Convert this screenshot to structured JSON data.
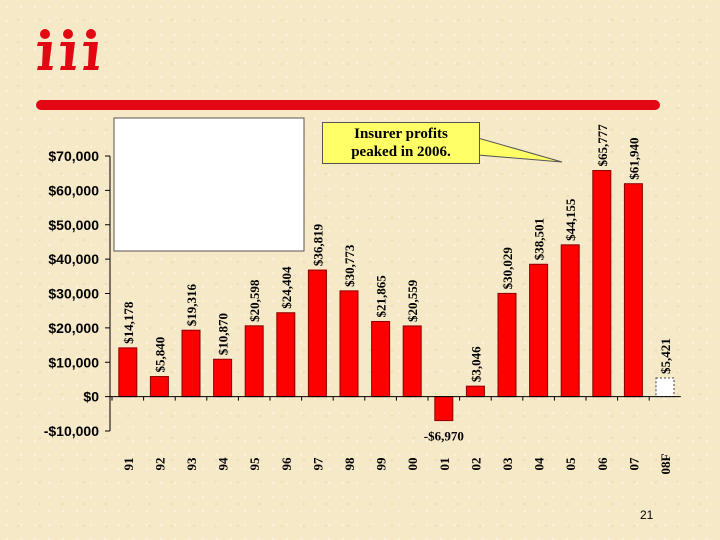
{
  "slide": {
    "callout_text": "Insurer profits\npeaked in 2006.",
    "page_number": "21"
  },
  "colors": {
    "bar_fill": "#ff0000",
    "bar_estimate_fill": "#ffffff",
    "logo_red": "#e30613",
    "callout_fill": "#ffff66"
  },
  "chart_data": {
    "type": "bar",
    "categories": [
      "91",
      "92",
      "93",
      "94",
      "95",
      "96",
      "97",
      "98",
      "99",
      "00",
      "01",
      "02",
      "03",
      "04",
      "05",
      "06",
      "07",
      "08F"
    ],
    "values": [
      14178,
      5840,
      19316,
      10870,
      20598,
      24404,
      36819,
      30773,
      21865,
      20559,
      -6970,
      3046,
      30029,
      38501,
      44155,
      65777,
      61940,
      5421
    ],
    "data_labels": [
      "$14,178",
      "$5,840",
      "$19,316",
      "$10,870",
      "$20,598",
      "$24,404",
      "$36,819",
      "$30,773",
      "$21,865",
      "$20,559",
      "-$6,970",
      "$3,046",
      "$30,029",
      "$38,501",
      "$44,155",
      "$65,777",
      "$61,940",
      "$5,421"
    ],
    "estimate_categories": [
      "08F"
    ],
    "y_tick_labels": [
      "-$10,000",
      "$0",
      "$10,000",
      "$20,000",
      "$30,000",
      "$40,000",
      "$50,000",
      "$60,000",
      "$70,000"
    ],
    "y_tick_values": [
      -10000,
      0,
      10000,
      20000,
      30000,
      40000,
      50000,
      60000,
      70000
    ],
    "ylim": [
      -10000,
      70000
    ],
    "title": "",
    "xlabel": "",
    "ylabel": "",
    "grid": false,
    "legend": false
  }
}
